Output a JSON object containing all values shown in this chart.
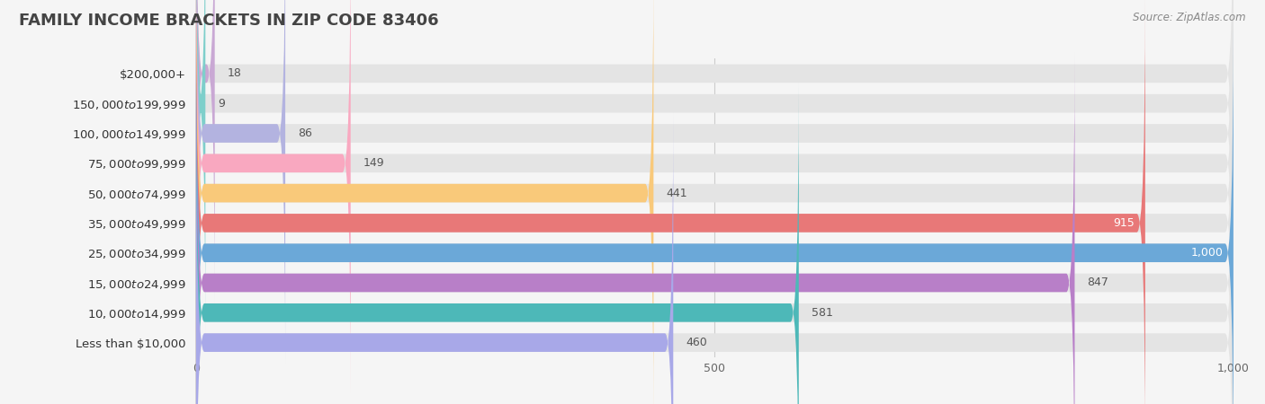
{
  "title": "Family Income Brackets in Zip Code 83406",
  "source": "Source: ZipAtlas.com",
  "categories": [
    "Less than $10,000",
    "$10,000 to $14,999",
    "$15,000 to $24,999",
    "$25,000 to $34,999",
    "$35,000 to $49,999",
    "$50,000 to $74,999",
    "$75,000 to $99,999",
    "$100,000 to $149,999",
    "$150,000 to $199,999",
    "$200,000+"
  ],
  "values": [
    18,
    9,
    86,
    149,
    441,
    915,
    1000,
    847,
    581,
    460
  ],
  "bar_colors": [
    "#c9a8d4",
    "#7ecfcb",
    "#b3b3e0",
    "#f9a8c0",
    "#f9c97a",
    "#e87878",
    "#6ba8d8",
    "#b87fc8",
    "#4db8b8",
    "#a8a8e8"
  ],
  "background_color": "#f5f5f5",
  "bar_bg_color": "#e4e4e4",
  "xmax": 1000,
  "xticks": [
    0,
    500,
    1000
  ],
  "title_fontsize": 13,
  "label_fontsize": 9.5,
  "value_fontsize": 9,
  "bar_height": 0.62,
  "value_inside_threshold": 870
}
